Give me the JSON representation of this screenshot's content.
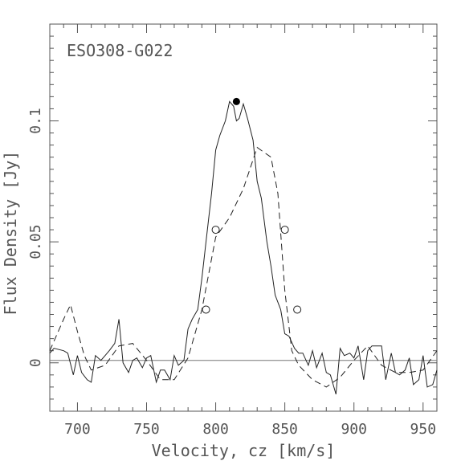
{
  "chart_data": {
    "type": "line",
    "galaxy_label": "ESO308-G022",
    "xlabel": "Velocity, cz [km/s]",
    "ylabel": "Flux Density [Jy]",
    "xlim": [
      680,
      960
    ],
    "ylim": [
      -0.02,
      0.14
    ],
    "x_ticks": [
      700,
      750,
      800,
      850,
      900,
      950
    ],
    "x_tick_labels": [
      "700",
      "750",
      "800",
      "850",
      "900",
      "950"
    ],
    "y_ticks": [
      0,
      0.05,
      0.1
    ],
    "y_tick_labels": [
      "0",
      "0.05",
      "0.1"
    ],
    "grid": false,
    "series": [
      {
        "style": "solid",
        "x": [
          680,
          683,
          690,
          693,
          697,
          700,
          703,
          707,
          710,
          713,
          717,
          720,
          723,
          727,
          730,
          733,
          737,
          740,
          743,
          747,
          750,
          753,
          757,
          760,
          763,
          767,
          770,
          773,
          777,
          780,
          783,
          787,
          790,
          793,
          797,
          800,
          803,
          807,
          810,
          813,
          815,
          817,
          820,
          823,
          827,
          830,
          833,
          837,
          840,
          843,
          847,
          850,
          853,
          857,
          860,
          863,
          867,
          870,
          873,
          877,
          880,
          883,
          887,
          890,
          893,
          897,
          900,
          903,
          907,
          910,
          913,
          917,
          920,
          923,
          927,
          930,
          933,
          937,
          940,
          943,
          947,
          950,
          953,
          957,
          960
        ],
        "values": [
          0.004,
          0.006,
          0.005,
          0.004,
          -0.005,
          0.003,
          -0.004,
          -0.007,
          -0.008,
          0.003,
          0.001,
          0.003,
          0.005,
          0.008,
          0.018,
          0.0,
          -0.004,
          0.001,
          0.002,
          -0.002,
          0.002,
          0.003,
          -0.008,
          -0.003,
          -0.003,
          -0.007,
          0.003,
          -0.001,
          0.001,
          0.014,
          0.018,
          0.022,
          0.035,
          0.05,
          0.07,
          0.088,
          0.094,
          0.1,
          0.108,
          0.106,
          0.1,
          0.101,
          0.107,
          0.101,
          0.092,
          0.075,
          0.068,
          0.05,
          0.04,
          0.028,
          0.022,
          0.012,
          0.011,
          0.006,
          0.004,
          0.004,
          -0.001,
          0.005,
          -0.002,
          0.004,
          -0.004,
          -0.005,
          -0.013,
          0.006,
          0.003,
          0.004,
          0.002,
          0.007,
          -0.007,
          0.005,
          0.007,
          0.007,
          0.007,
          -0.007,
          0.004,
          -0.004,
          -0.005,
          -0.003,
          0.002,
          -0.009,
          -0.007,
          0.003,
          -0.01,
          -0.009,
          -0.003
        ]
      },
      {
        "style": "dashed",
        "x": [
          680,
          690,
          695,
          700,
          705,
          710,
          720,
          730,
          740,
          750,
          760,
          770,
          780,
          790,
          800,
          810,
          820,
          830,
          840,
          845,
          850,
          855,
          860,
          870,
          880,
          890,
          900,
          910,
          920,
          930,
          940,
          950,
          960
        ],
        "values": [
          0.005,
          0.018,
          0.024,
          0.013,
          0.003,
          -0.003,
          -0.001,
          0.007,
          0.008,
          0.001,
          -0.007,
          -0.007,
          0.002,
          0.022,
          0.052,
          0.06,
          0.072,
          0.089,
          0.085,
          0.07,
          0.03,
          0.005,
          -0.001,
          -0.007,
          -0.01,
          -0.006,
          0.001,
          0.007,
          -0.001,
          -0.004,
          -0.004,
          -0.003,
          0.005
        ]
      }
    ],
    "baseline_y": 0.001,
    "filled_marker": {
      "x": 815,
      "y": 0.108
    },
    "open_markers": [
      {
        "x": 793,
        "y": 0.022
      },
      {
        "x": 800,
        "y": 0.055
      },
      {
        "x": 850,
        "y": 0.055
      },
      {
        "x": 859,
        "y": 0.022
      }
    ]
  }
}
